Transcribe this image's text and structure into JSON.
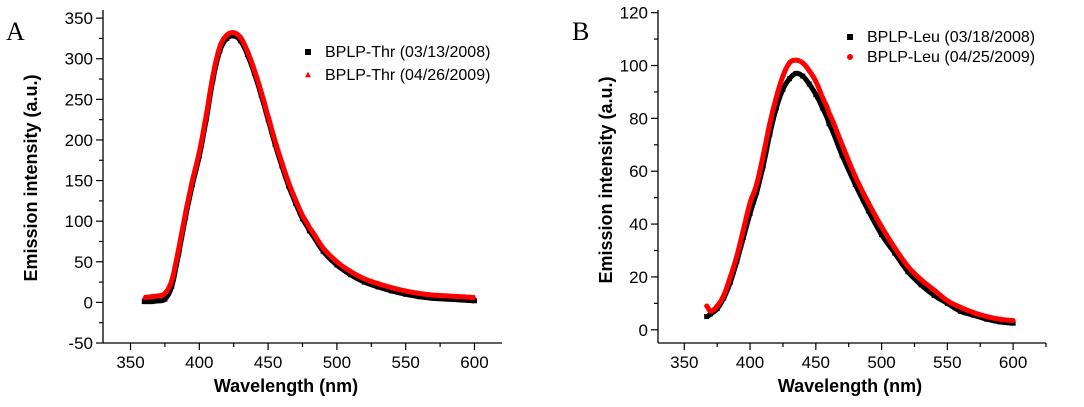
{
  "chart_data": [
    {
      "type": "scatter",
      "panel_label": "A",
      "xlabel": "Wavelength (nm)",
      "ylabel": "Emission intensity (a.u.)",
      "xlim": [
        330,
        620
      ],
      "ylim": [
        -50,
        360
      ],
      "xticks": [
        350,
        400,
        450,
        500,
        550,
        600
      ],
      "yticks": [
        -50,
        0,
        50,
        100,
        150,
        200,
        250,
        300,
        350
      ],
      "legend_position": "top-right",
      "series": [
        {
          "name": "BPLP-Thr (03/13/2008)",
          "color": "#000000",
          "marker": "square",
          "x": [
            360,
            365,
            370,
            375,
            380,
            385,
            390,
            395,
            400,
            405,
            410,
            415,
            420,
            425,
            430,
            435,
            440,
            445,
            450,
            455,
            460,
            465,
            470,
            475,
            480,
            490,
            500,
            510,
            520,
            530,
            540,
            550,
            560,
            570,
            580,
            590,
            600
          ],
          "y": [
            1,
            1,
            2,
            4,
            20,
            60,
            105,
            145,
            180,
            225,
            275,
            310,
            325,
            328,
            322,
            305,
            282,
            255,
            225,
            195,
            168,
            143,
            122,
            103,
            88,
            63,
            46,
            34,
            25,
            19,
            14,
            10,
            7,
            5,
            4,
            3,
            2
          ]
        },
        {
          "name": "BPLP-Thr (04/26/2009)",
          "color": "#ff0000",
          "marker": "triangle",
          "x": [
            360,
            365,
            370,
            375,
            380,
            385,
            390,
            395,
            400,
            405,
            410,
            415,
            420,
            425,
            430,
            435,
            440,
            445,
            450,
            455,
            460,
            465,
            470,
            475,
            480,
            490,
            500,
            510,
            520,
            530,
            540,
            550,
            560,
            570,
            580,
            590,
            600
          ],
          "y": [
            6,
            7,
            8,
            11,
            27,
            66,
            110,
            150,
            185,
            230,
            280,
            315,
            329,
            332,
            326,
            309,
            286,
            259,
            229,
            199,
            172,
            147,
            126,
            107,
            92,
            67,
            50,
            38,
            29,
            23,
            18,
            14,
            11,
            9,
            8,
            7,
            6
          ]
        }
      ]
    },
    {
      "type": "scatter",
      "panel_label": "B",
      "xlabel": "Wavelength (nm)",
      "ylabel": "Emission intensity (a.u.)",
      "xlim": [
        330,
        625
      ],
      "ylim": [
        -5,
        121
      ],
      "xticks": [
        350,
        400,
        450,
        500,
        550,
        600
      ],
      "yticks": [
        0,
        20,
        40,
        60,
        80,
        100,
        120
      ],
      "legend_position": "top-right",
      "series": [
        {
          "name": "BPLP-Leu (03/18/2008)",
          "color": "#000000",
          "marker": "square",
          "x": [
            367,
            370,
            375,
            380,
            385,
            390,
            395,
            400,
            405,
            410,
            415,
            420,
            425,
            430,
            435,
            440,
            445,
            450,
            455,
            460,
            470,
            480,
            490,
            500,
            510,
            520,
            530,
            540,
            550,
            560,
            570,
            580,
            590,
            600
          ],
          "y": [
            5,
            6,
            8,
            12,
            18,
            26,
            35,
            44,
            52,
            62,
            74,
            84,
            91,
            95,
            97,
            96,
            93,
            89,
            84,
            78,
            66,
            55,
            45,
            36,
            29,
            22,
            17,
            13,
            10,
            7,
            5.5,
            4,
            3,
            2.5
          ]
        },
        {
          "name": "BPLP-Leu (04/25/2009)",
          "color": "#ff0000",
          "marker": "circle",
          "x": [
            367,
            370,
            375,
            380,
            385,
            390,
            395,
            400,
            405,
            410,
            415,
            420,
            425,
            430,
            435,
            440,
            445,
            450,
            455,
            460,
            470,
            480,
            490,
            500,
            510,
            520,
            530,
            540,
            550,
            560,
            570,
            580,
            590,
            600
          ],
          "y": [
            9,
            7,
            9,
            13,
            20,
            28,
            38,
            48,
            55,
            66,
            78,
            88,
            96,
            101,
            102,
            101,
            98,
            94,
            88,
            82,
            70,
            58,
            48,
            39,
            31,
            24,
            19,
            15,
            11,
            8.5,
            6.5,
            5,
            4,
            3.5
          ]
        }
      ]
    }
  ]
}
